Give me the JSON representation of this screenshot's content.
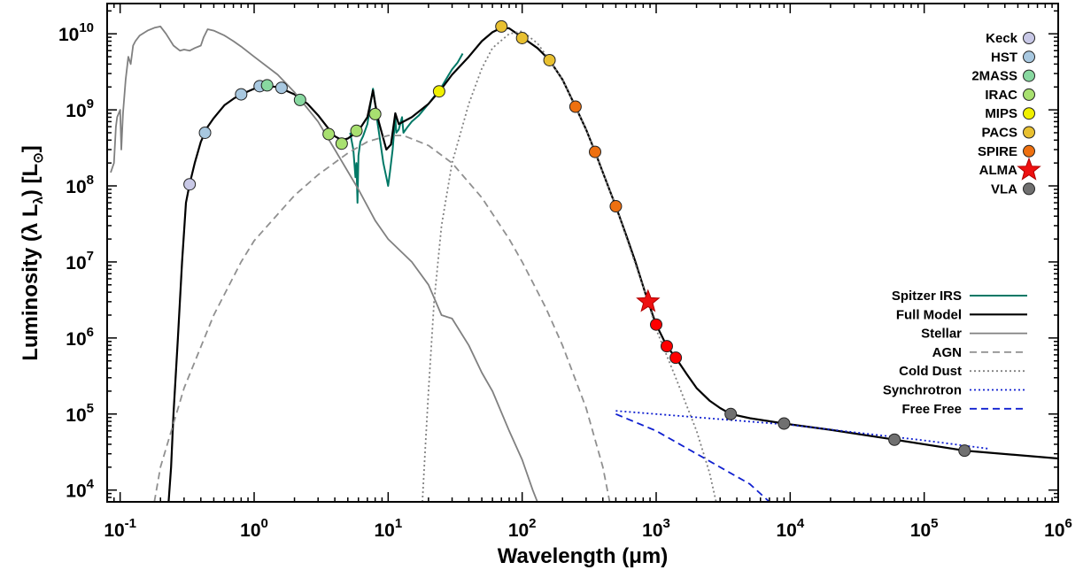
{
  "chart_data": {
    "type": "scatter",
    "title": "",
    "xlabel": "Wavelength (μm)",
    "ylabel": "Luminosity (λ L",
    "ylabel_sub": "λ",
    "ylabel_units": ") [L",
    "ylabel_units_close": "]",
    "xscale": "log",
    "yscale": "log",
    "xlim": [
      0.08,
      1000000
    ],
    "ylim": [
      7000,
      25000000000
    ],
    "x_ticks": [
      {
        "value": 0.1,
        "base": "10",
        "exp": "-1"
      },
      {
        "value": 1,
        "base": "10",
        "exp": "0"
      },
      {
        "value": 10,
        "base": "10",
        "exp": "1"
      },
      {
        "value": 100,
        "base": "10",
        "exp": "2"
      },
      {
        "value": 1000,
        "base": "10",
        "exp": "3"
      },
      {
        "value": 10000,
        "base": "10",
        "exp": "4"
      },
      {
        "value": 100000,
        "base": "10",
        "exp": "5"
      },
      {
        "value": 1000000,
        "base": "10",
        "exp": "6"
      }
    ],
    "y_ticks": [
      {
        "value": 10000,
        "base": "10",
        "exp": "4"
      },
      {
        "value": 100000,
        "base": "10",
        "exp": "5"
      },
      {
        "value": 1000000,
        "base": "10",
        "exp": "6"
      },
      {
        "value": 10000000,
        "base": "10",
        "exp": "7"
      },
      {
        "value": 100000000,
        "base": "10",
        "exp": "8"
      },
      {
        "value": 1000000000,
        "base": "10",
        "exp": "9"
      },
      {
        "value": 10000000000,
        "base": "10",
        "exp": "10"
      }
    ],
    "grid": false,
    "legend_points_position": "top-right",
    "legend_lines_position": "right",
    "point_series": [
      {
        "name": "Keck",
        "color": "#c8c8e6",
        "marker": "circle",
        "points": [
          [
            0.33,
            105000000
          ]
        ]
      },
      {
        "name": "HST",
        "color": "#a8c8e0",
        "marker": "circle",
        "points": [
          [
            0.43,
            500000000
          ],
          [
            0.8,
            1600000000
          ],
          [
            1.1,
            2050000000
          ],
          [
            1.6,
            1950000000
          ]
        ]
      },
      {
        "name": "2MASS",
        "color": "#88d8a0",
        "marker": "circle",
        "points": [
          [
            1.25,
            2100000000
          ],
          [
            2.2,
            1350000000
          ]
        ]
      },
      {
        "name": "IRAC",
        "color": "#a8e070",
        "marker": "circle",
        "points": [
          [
            3.6,
            480000000
          ],
          [
            4.5,
            360000000
          ],
          [
            5.8,
            530000000
          ],
          [
            8.0,
            880000000
          ]
        ]
      },
      {
        "name": "MIPS",
        "color": "#f0f000",
        "marker": "circle",
        "points": [
          [
            24,
            1750000000
          ]
        ]
      },
      {
        "name": "PACS",
        "color": "#e8c030",
        "marker": "circle",
        "points": [
          [
            70,
            12500000000
          ],
          [
            100,
            8800000000
          ],
          [
            160,
            4500000000
          ]
        ]
      },
      {
        "name": "SPIRE",
        "color": "#ee7010",
        "marker": "circle",
        "points": [
          [
            250,
            1100000000
          ],
          [
            350,
            280000000
          ],
          [
            500,
            54000000
          ]
        ]
      },
      {
        "name": "ALMA",
        "color": "#ee1010",
        "marker": "star",
        "points": [
          [
            870,
            3000000
          ]
        ]
      },
      {
        "name": "",
        "color": "#ff0000",
        "marker": "circle",
        "points": [
          [
            1000,
            1500000
          ],
          [
            1200,
            780000
          ],
          [
            1400,
            550000
          ]
        ]
      },
      {
        "name": "VLA",
        "color": "#707070",
        "marker": "circle",
        "points": [
          [
            3600,
            100000
          ],
          [
            9000,
            75000
          ],
          [
            60000,
            46000
          ],
          [
            200000,
            33000
          ]
        ]
      }
    ],
    "line_series": [
      {
        "name": "Spitzer IRS",
        "color": "#007866",
        "dash": "",
        "width": 2,
        "points": [
          [
            5.2,
            500000000
          ],
          [
            5.5,
            300000000
          ],
          [
            5.7,
            130000000
          ],
          [
            5.8,
            200000000
          ],
          [
            5.9,
            60000000
          ],
          [
            6.0,
            250000000
          ],
          [
            6.2,
            380000000
          ],
          [
            6.5,
            450000000
          ],
          [
            7.0,
            650000000
          ],
          [
            7.5,
            1400000000
          ],
          [
            7.7,
            1900000000
          ],
          [
            8.0,
            1200000000
          ],
          [
            8.3,
            700000000
          ],
          [
            8.7,
            400000000
          ],
          [
            9.2,
            200000000
          ],
          [
            9.7,
            130000000
          ],
          [
            10.0,
            100000000
          ],
          [
            10.3,
            150000000
          ],
          [
            10.8,
            300000000
          ],
          [
            11.3,
            800000000
          ],
          [
            11.5,
            500000000
          ],
          [
            12.0,
            550000000
          ],
          [
            12.7,
            800000000
          ],
          [
            13.0,
            500000000
          ],
          [
            14.0,
            600000000
          ],
          [
            15.0,
            700000000
          ],
          [
            17.0,
            850000000
          ],
          [
            20.0,
            1200000000
          ],
          [
            25.0,
            2000000000
          ],
          [
            28.0,
            2800000000
          ],
          [
            30.0,
            3400000000
          ],
          [
            33.0,
            4200000000
          ],
          [
            36.0,
            5500000000
          ]
        ]
      },
      {
        "name": "Full Model",
        "color": "#000000",
        "dash": "",
        "width": 2.2,
        "points": [
          [
            0.23,
            7000
          ],
          [
            0.24,
            20000
          ],
          [
            0.25,
            100000
          ],
          [
            0.27,
            1000000
          ],
          [
            0.29,
            10000000
          ],
          [
            0.31,
            60000000
          ],
          [
            0.33,
            105000000
          ],
          [
            0.36,
            200000000
          ],
          [
            0.4,
            380000000
          ],
          [
            0.45,
            600000000
          ],
          [
            0.5,
            780000000
          ],
          [
            0.6,
            1150000000
          ],
          [
            0.7,
            1400000000
          ],
          [
            0.8,
            1600000000
          ],
          [
            1.0,
            1900000000
          ],
          [
            1.2,
            2050000000
          ],
          [
            1.5,
            2000000000
          ],
          [
            2.0,
            1600000000
          ],
          [
            2.5,
            1200000000
          ],
          [
            3.0,
            850000000
          ],
          [
            3.5,
            600000000
          ],
          [
            4.0,
            450000000
          ],
          [
            4.5,
            400000000
          ],
          [
            5.0,
            420000000
          ],
          [
            6.0,
            530000000
          ],
          [
            7.0,
            800000000
          ],
          [
            7.7,
            1800000000
          ],
          [
            8.0,
            1200000000
          ],
          [
            8.5,
            700000000
          ],
          [
            9.7,
            300000000
          ],
          [
            10.5,
            350000000
          ],
          [
            11.3,
            900000000
          ],
          [
            12.0,
            650000000
          ],
          [
            13.0,
            700000000
          ],
          [
            15.0,
            800000000
          ],
          [
            20.0,
            1200000000
          ],
          [
            25.0,
            1900000000
          ],
          [
            30.0,
            2900000000
          ],
          [
            40.0,
            5000000000
          ],
          [
            50.0,
            8000000000
          ],
          [
            60.0,
            10500000000
          ],
          [
            70.0,
            12000000000
          ],
          [
            80.0,
            11800000000
          ],
          [
            100.0,
            9000000000
          ],
          [
            130.0,
            6500000000
          ],
          [
            160.0,
            4500000000
          ],
          [
            200.0,
            2500000000
          ],
          [
            250.0,
            1100000000
          ],
          [
            300.0,
            550000000
          ],
          [
            350.0,
            280000000
          ],
          [
            400.0,
            150000000
          ],
          [
            500.0,
            54000000
          ],
          [
            600.0,
            22000000
          ],
          [
            700.0,
            10000000
          ],
          [
            870.0,
            3000000
          ],
          [
            1000.0,
            1500000
          ],
          [
            1200.0,
            780000
          ],
          [
            1400.0,
            550000
          ],
          [
            1700.0,
            330000
          ],
          [
            2000.0,
            220000
          ],
          [
            2500.0,
            150000
          ],
          [
            3000.0,
            120000
          ],
          [
            3600.0,
            100000
          ],
          [
            5000.0,
            88000
          ],
          [
            9000.0,
            75000
          ],
          [
            20000.0,
            62000
          ],
          [
            60000.0,
            46000
          ],
          [
            200000.0,
            33000
          ],
          [
            1000000.0,
            26000
          ]
        ]
      },
      {
        "name": "Stellar",
        "color": "#808080",
        "dash": "",
        "width": 1.8,
        "points": [
          [
            0.085,
            150000000
          ],
          [
            0.09,
            200000000
          ],
          [
            0.093,
            600000000
          ],
          [
            0.095,
            800000000
          ],
          [
            0.1,
            1000000000
          ],
          [
            0.102,
            300000000
          ],
          [
            0.105,
            900000000
          ],
          [
            0.11,
            2500000000
          ],
          [
            0.115,
            5000000000
          ],
          [
            0.12,
            4000000000
          ],
          [
            0.125,
            7000000000
          ],
          [
            0.13,
            8000000000
          ],
          [
            0.14,
            9500000000
          ],
          [
            0.16,
            11000000000
          ],
          [
            0.18,
            12000000000
          ],
          [
            0.2,
            12500000000
          ],
          [
            0.22,
            10000000000
          ],
          [
            0.25,
            7000000000
          ],
          [
            0.28,
            6000000000
          ],
          [
            0.3,
            6200000000
          ],
          [
            0.33,
            6000000000
          ],
          [
            0.36,
            6500000000
          ],
          [
            0.4,
            7000000000
          ],
          [
            0.42,
            9000000000
          ],
          [
            0.45,
            11500000000
          ],
          [
            0.5,
            11000000000
          ],
          [
            0.6,
            9500000000
          ],
          [
            0.7,
            8000000000
          ],
          [
            0.8,
            6800000000
          ],
          [
            1.0,
            5000000000
          ],
          [
            1.5,
            2900000000
          ],
          [
            2.0,
            1700000000
          ],
          [
            3.0,
            700000000
          ],
          [
            4.0,
            300000000
          ],
          [
            6.0,
            90000000
          ],
          [
            8.0,
            35000000
          ],
          [
            10.0,
            20000000
          ],
          [
            15.0,
            10000000
          ],
          [
            20.0,
            5000000
          ],
          [
            25.0,
            2000000
          ],
          [
            30.0,
            1800000
          ],
          [
            40.0,
            800000
          ],
          [
            50.0,
            350000
          ],
          [
            60.0,
            200000
          ],
          [
            80.0,
            60000
          ],
          [
            100.0,
            25000
          ],
          [
            120.0,
            10000
          ],
          [
            140.0,
            5000
          ]
        ]
      },
      {
        "name": "AGN",
        "color": "#909090",
        "dash": "8,5",
        "width": 1.8,
        "points": [
          [
            0.18,
            7000
          ],
          [
            0.2,
            20000
          ],
          [
            0.3,
            220000
          ],
          [
            0.5,
            2000000
          ],
          [
            0.8,
            10000000
          ],
          [
            1.0,
            19000000
          ],
          [
            2.0,
            75000000
          ],
          [
            3.0,
            140000000
          ],
          [
            5.0,
            270000000
          ],
          [
            7.0,
            380000000
          ],
          [
            10.0,
            460000000
          ],
          [
            13.0,
            460000000
          ],
          [
            20.0,
            340000000
          ],
          [
            30.0,
            200000000
          ],
          [
            50.0,
            70000000
          ],
          [
            80.0,
            20000000
          ],
          [
            100.0,
            10000000
          ],
          [
            150.0,
            2500000
          ],
          [
            200.0,
            800000
          ],
          [
            300.0,
            120000
          ],
          [
            400.0,
            20000
          ],
          [
            450.0,
            7000
          ]
        ]
      },
      {
        "name": "Cold Dust",
        "color": "#808080",
        "dash": "2,3",
        "width": 1.8,
        "points": [
          [
            18.0,
            7000
          ],
          [
            19.0,
            40000
          ],
          [
            20.0,
            200000
          ],
          [
            22.0,
            3000000
          ],
          [
            25.0,
            30000000
          ],
          [
            30.0,
            200000000
          ],
          [
            40.0,
            1200000000
          ],
          [
            50.0,
            3500000000
          ],
          [
            60.0,
            6500000000
          ],
          [
            80.0,
            10000000000
          ],
          [
            100.0,
            10800000000
          ],
          [
            130.0,
            7500000000
          ],
          [
            160.0,
            4500000000
          ],
          [
            200.0,
            2500000000
          ],
          [
            300.0,
            550000000
          ],
          [
            500.0,
            54000000
          ],
          [
            870.0,
            3000000
          ],
          [
            1000.0,
            1300000
          ],
          [
            1400.0,
            300000
          ],
          [
            2000.0,
            60000
          ],
          [
            2500.0,
            17000
          ],
          [
            2800.0,
            7000
          ]
        ]
      },
      {
        "name": "Synchrotron",
        "color": "#1020d0",
        "dash": "2,3",
        "width": 1.8,
        "points": [
          [
            500.0,
            110000
          ],
          [
            1000.0,
            100000
          ],
          [
            10000.0,
            72000
          ],
          [
            100000.0,
            45000
          ],
          [
            300000.0,
            35000
          ]
        ]
      },
      {
        "name": "Free Free",
        "color": "#1020d0",
        "dash": "8,5",
        "width": 1.8,
        "points": [
          [
            500.0,
            100000
          ],
          [
            1000.0,
            60000
          ],
          [
            2000.0,
            30000
          ],
          [
            5000.0,
            12000
          ],
          [
            7000.0,
            7000
          ]
        ]
      }
    ]
  }
}
